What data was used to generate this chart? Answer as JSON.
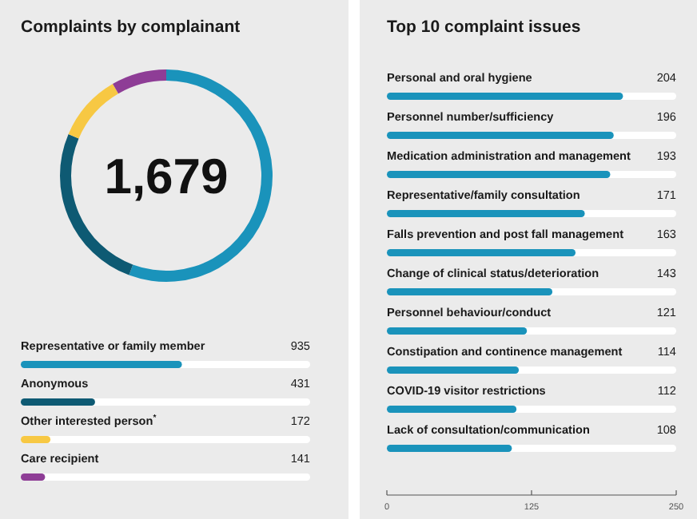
{
  "chart_data": [
    {
      "type": "donut",
      "title": "Complaints by complainant",
      "annotations": [
        "1,679"
      ],
      "categories": [
        null,
        null,
        null,
        null
      ],
      "values": [
        55.7,
        25.7,
        10.2,
        8.4
      ],
      "colors": [
        "#1a93bb",
        "#0e5a73",
        "#f7c843",
        "#8e3d96"
      ]
    },
    {
      "type": "bar",
      "orientation": "horizontal",
      "categories": [
        "Representative or family member",
        "Anonymous",
        "Other interested person$^{*}$",
        "Care recipient"
      ],
      "values": [
        935,
        431,
        172,
        141
      ],
      "colors": [
        "#1a93bb",
        "#0e5a73",
        "#f7c843",
        "#8e3d96"
      ],
      "xlim": [
        0,
        1679
      ],
      "data_labels": true,
      "tick_labels": "y"
    },
    {
      "type": "bar",
      "orientation": "horizontal",
      "title": "Top 10 complaint issues",
      "categories": [
        "Personal and oral hygiene",
        "Personnel number/sufficiency",
        "Medication administration and management",
        "Representative/family consultation",
        "Falls prevention and post fall management",
        "Change of clinical status/deterioration",
        "Personnel behaviour/conduct",
        "Constipation and continence management",
        "COVID-19 visitor restrictions",
        "Lack of consultation/communication"
      ],
      "values": [
        204,
        196,
        193,
        171,
        163,
        143,
        121,
        114,
        112,
        108
      ],
      "colors": [
        "#1a93bb",
        "#1a93bb",
        "#1a93bb",
        "#1a93bb",
        "#1a93bb",
        "#1a93bb",
        "#1a93bb",
        "#1a93bb",
        "#1a93bb",
        "#1a93bb"
      ],
      "xlim": [
        0,
        250
      ],
      "xticks": [
        0,
        125,
        250
      ],
      "data_labels": true
    }
  ]
}
